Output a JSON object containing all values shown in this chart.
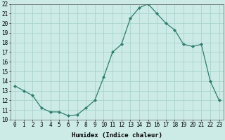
{
  "x": [
    0,
    1,
    2,
    3,
    4,
    5,
    6,
    7,
    8,
    9,
    10,
    11,
    12,
    13,
    14,
    15,
    16,
    17,
    18,
    19,
    20,
    21,
    22,
    23
  ],
  "y": [
    13.5,
    13.0,
    12.5,
    11.2,
    10.8,
    10.8,
    10.4,
    10.5,
    11.2,
    12.0,
    14.4,
    17.0,
    17.8,
    20.5,
    21.6,
    22.0,
    21.0,
    20.0,
    19.3,
    17.8,
    17.6,
    17.8,
    14.0,
    12.0
  ],
  "line_color": "#2e7d6e",
  "marker": "D",
  "marker_size": 2,
  "bg_color": "#cceae6",
  "grid_color": "#aad4cf",
  "xlabel": "Humidex (Indice chaleur)",
  "ylim": [
    10,
    22
  ],
  "xlim": [
    -0.5,
    23.5
  ],
  "yticks": [
    10,
    11,
    12,
    13,
    14,
    15,
    16,
    17,
    18,
    19,
    20,
    21,
    22
  ],
  "xticks": [
    0,
    1,
    2,
    3,
    4,
    5,
    6,
    7,
    8,
    9,
    10,
    11,
    12,
    13,
    14,
    15,
    16,
    17,
    18,
    19,
    20,
    21,
    22,
    23
  ],
  "tick_fontsize": 5.5,
  "label_fontsize": 6.5
}
